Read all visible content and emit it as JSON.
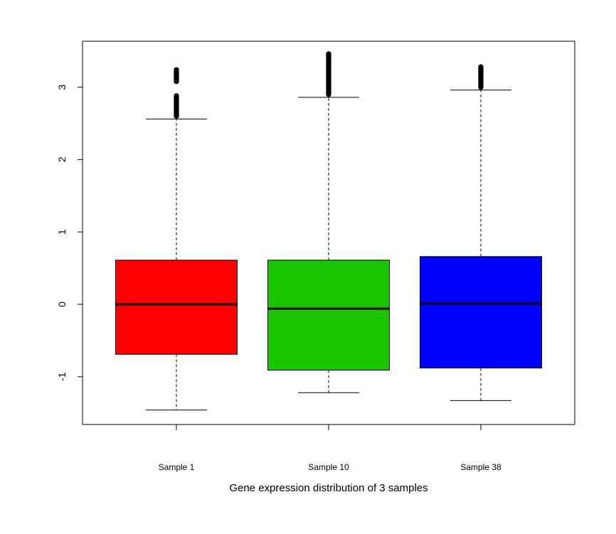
{
  "chart_data": {
    "type": "boxplot",
    "xlabel": "Gene expression distribution of 3 samples",
    "ylabel": "",
    "ylim": [
      -1.65,
      3.55
    ],
    "yticks": [
      -1,
      0,
      1,
      2,
      3
    ],
    "ytick_labels": [
      "-1",
      "0",
      "1",
      "2",
      "3"
    ],
    "grid": false,
    "categories": [
      "Sample 1",
      "Sample 10",
      "Sample 38"
    ],
    "colors": [
      "#ff0000",
      "#18c700",
      "#0000ff"
    ],
    "boxes": [
      {
        "category": "Sample 1",
        "whisker_low": -1.46,
        "q1": -0.69,
        "median": 0.0,
        "q3": 0.61,
        "whisker_high": 2.56,
        "outliers": [
          2.6,
          2.62,
          2.64,
          2.66,
          2.68,
          2.7,
          2.72,
          2.74,
          2.76,
          2.78,
          2.8,
          2.82,
          2.84,
          2.86,
          2.88,
          3.08,
          3.1,
          3.12,
          3.14,
          3.16,
          3.18,
          3.2,
          3.22,
          3.24
        ]
      },
      {
        "category": "Sample 10",
        "whisker_low": -1.22,
        "q1": -0.91,
        "median": -0.06,
        "q3": 0.61,
        "whisker_high": 2.86,
        "outliers": [
          2.9,
          2.92,
          2.94,
          2.96,
          2.98,
          3.0,
          3.02,
          3.04,
          3.06,
          3.08,
          3.1,
          3.12,
          3.14,
          3.16,
          3.18,
          3.2,
          3.22,
          3.24,
          3.26,
          3.28,
          3.3,
          3.32,
          3.34,
          3.36,
          3.38,
          3.4,
          3.42,
          3.44,
          3.46
        ]
      },
      {
        "category": "Sample 38",
        "whisker_low": -1.33,
        "q1": -0.88,
        "median": 0.01,
        "q3": 0.66,
        "whisker_high": 2.96,
        "outliers": [
          3.0,
          3.02,
          3.04,
          3.06,
          3.08,
          3.1,
          3.12,
          3.14,
          3.16,
          3.18,
          3.2,
          3.22,
          3.24,
          3.26,
          3.28
        ]
      }
    ]
  }
}
